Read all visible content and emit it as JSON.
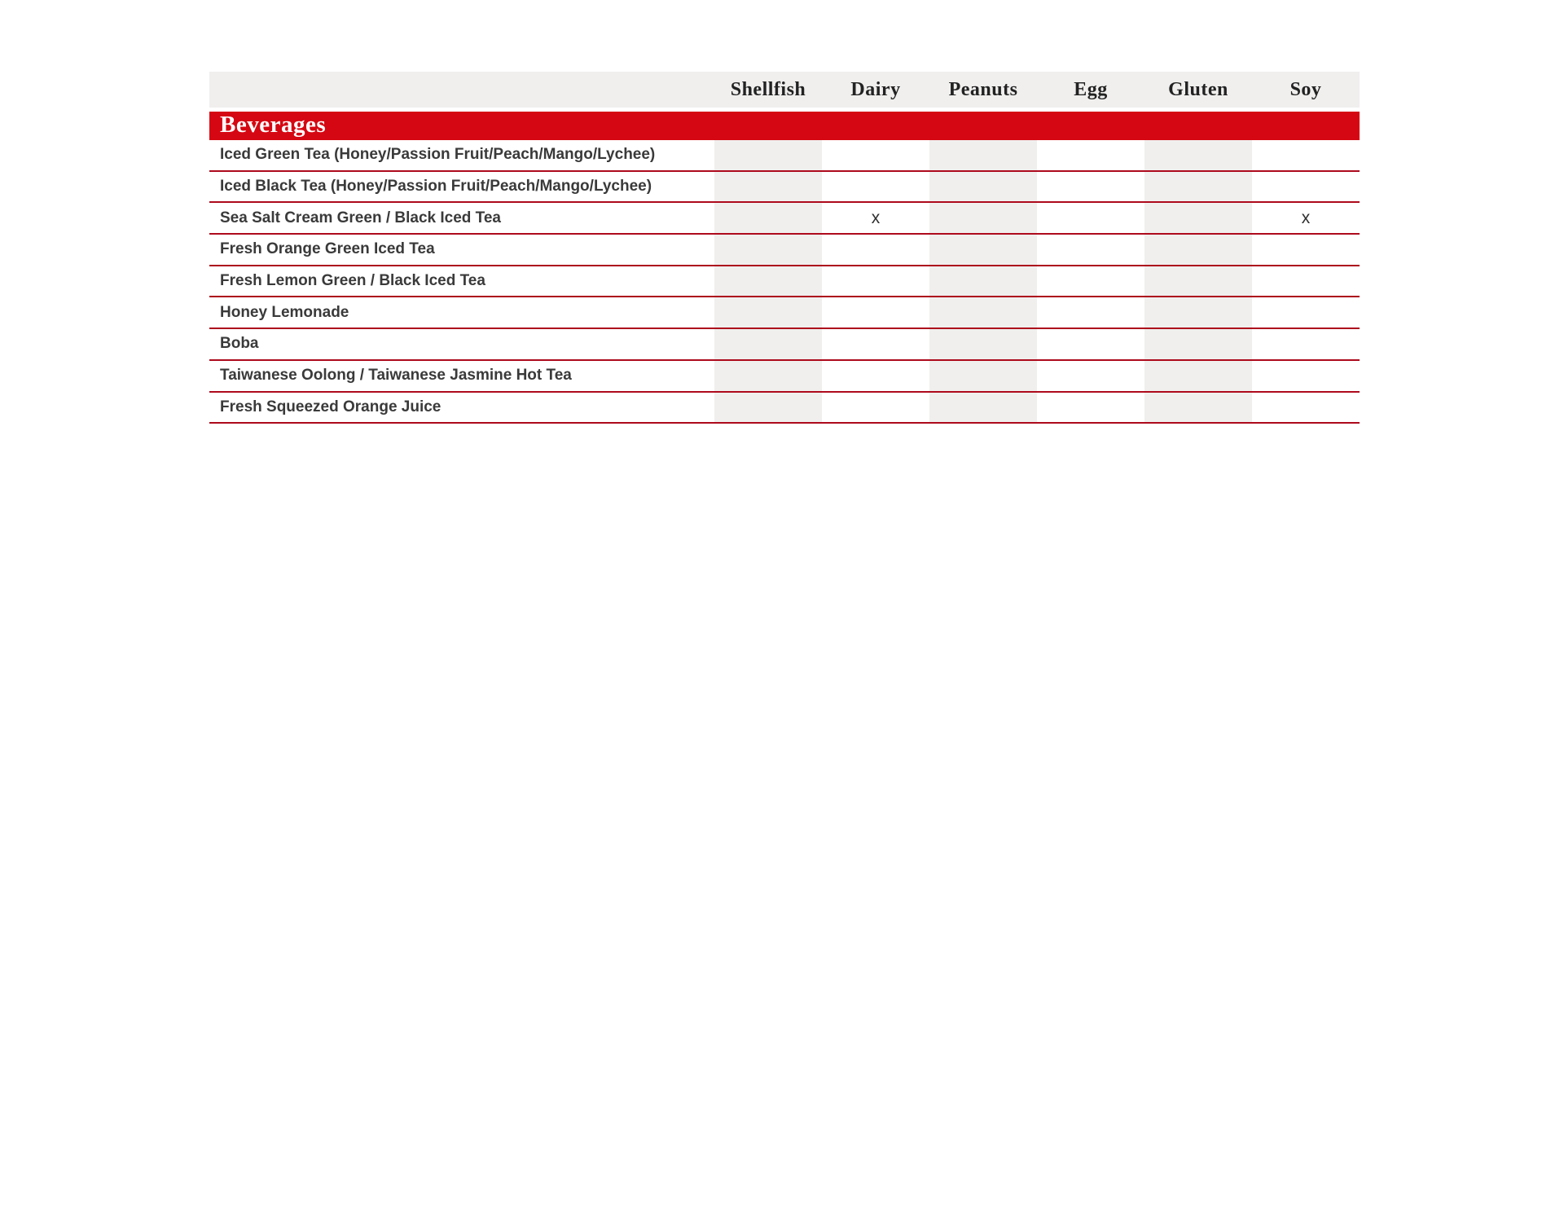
{
  "table": {
    "columns": [
      "Shellfish",
      "Dairy",
      "Peanuts",
      "Egg",
      "Gluten",
      "Soy"
    ],
    "section_title": "Beverages",
    "mark_symbol": "x",
    "rows": [
      {
        "name": "Iced Green Tea (Honey/Passion Fruit/Peach/Mango/Lychee)",
        "cells": [
          "",
          "",
          "",
          "",
          "",
          ""
        ]
      },
      {
        "name": "Iced Black Tea (Honey/Passion Fruit/Peach/Mango/Lychee)",
        "cells": [
          "",
          "",
          "",
          "",
          "",
          ""
        ]
      },
      {
        "name": "Sea Salt Cream Green / Black Iced Tea",
        "cells": [
          "",
          "x",
          "",
          "",
          "",
          "x"
        ]
      },
      {
        "name": "Fresh Orange Green Iced Tea",
        "cells": [
          "",
          "",
          "",
          "",
          "",
          ""
        ]
      },
      {
        "name": "Fresh Lemon Green / Black Iced Tea",
        "cells": [
          "",
          "",
          "",
          "",
          "",
          ""
        ]
      },
      {
        "name": "Honey Lemonade",
        "cells": [
          "",
          "",
          "",
          "",
          "",
          ""
        ]
      },
      {
        "name": "Boba",
        "cells": [
          "",
          "",
          "",
          "",
          "",
          ""
        ]
      },
      {
        "name": "Taiwanese Oolong / Taiwanese Jasmine Hot Tea",
        "cells": [
          "",
          "",
          "",
          "",
          "",
          ""
        ]
      },
      {
        "name": "Fresh Squeezed Orange Juice",
        "cells": [
          "",
          "",
          "",
          "",
          "",
          ""
        ]
      }
    ],
    "colors": {
      "section_bar": "#d50712",
      "row_divider": "#ad0a1c",
      "column_band": "#f0efee",
      "header_bg": "#f0efee",
      "header_text": "#222222",
      "row_text": "#3a3a3a",
      "mark_text": "#2e2e2e",
      "section_text": "#ffffff",
      "page_bg": "#ffffff"
    }
  }
}
